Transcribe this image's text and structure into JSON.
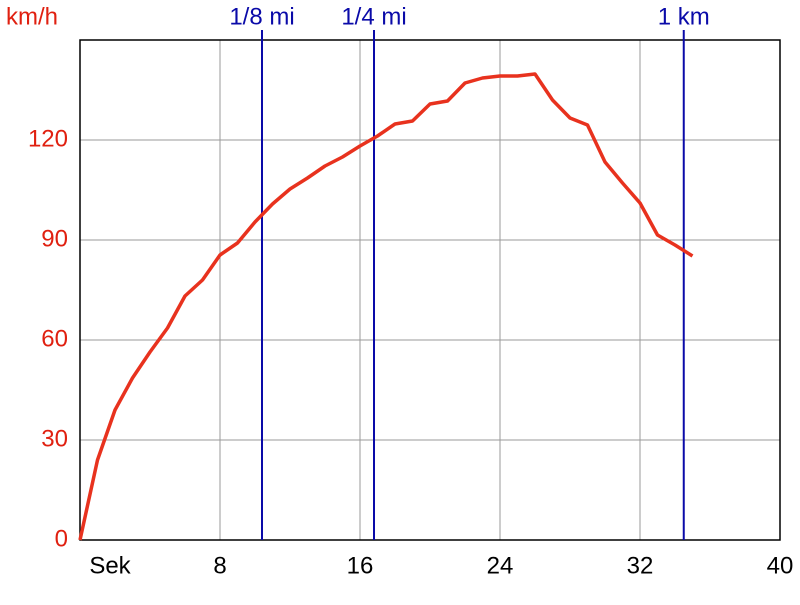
{
  "chart_data": {
    "type": "line",
    "y_label": "km/h",
    "x": [
      0,
      1,
      2,
      3,
      4,
      5,
      6,
      7,
      8,
      9,
      10,
      11,
      12,
      13,
      14,
      15,
      16,
      17,
      18,
      19,
      20,
      21,
      22,
      23,
      24,
      25,
      26,
      27,
      28,
      29,
      30,
      31,
      32,
      33,
      34,
      35
    ],
    "series": [
      {
        "name": "km/h",
        "color": "#e8321e",
        "values": [
          0,
          24,
          39,
          48.6,
          56.4,
          63.6,
          73.2,
          78,
          85.5,
          89.1,
          95.4,
          100.8,
          105.3,
          108.6,
          112.2,
          114.9,
          118.2,
          121.2,
          124.8,
          125.7,
          130.8,
          131.7,
          137.1,
          138.6,
          139.2,
          139.2,
          139.8,
          132,
          126.6,
          124.5,
          113.4,
          107.1,
          101.1,
          91.5,
          88.5,
          85.2
        ]
      }
    ],
    "markers": [
      {
        "x": 10.4,
        "label": "1/8 mi"
      },
      {
        "x": 16.8,
        "label": "1/4 mi"
      },
      {
        "x": 34.5,
        "label": "1 km"
      }
    ],
    "marker_color": "#0a0aa8",
    "xlim": [
      0,
      40
    ],
    "xticks": [
      {
        "value": 0,
        "label": "Sek"
      },
      8,
      16,
      24,
      32,
      40
    ],
    "ylim": [
      0,
      150
    ],
    "yticks": [
      0,
      30,
      60,
      90,
      120
    ],
    "grid": true
  }
}
